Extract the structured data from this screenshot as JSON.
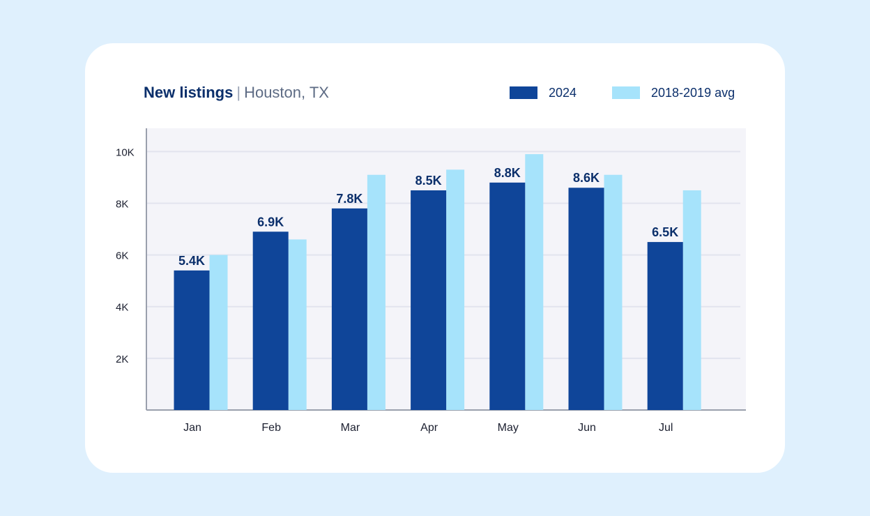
{
  "header": {
    "title": "New listings",
    "separator": "|",
    "subtitle": "Houston, TX"
  },
  "colors": {
    "series_2024": "#0f4599",
    "series_avg": "#a6e3fb",
    "text_dark": "#0b2f6b",
    "plot_bg": "#f4f4f9",
    "grid": "#e2e4ee"
  },
  "chart_data": {
    "type": "bar",
    "title": "New listings | Houston, TX",
    "categories": [
      "Jan",
      "Feb",
      "Mar",
      "Apr",
      "May",
      "Jun",
      "Jul"
    ],
    "series": [
      {
        "name": "2024",
        "values": [
          5.4,
          6.9,
          7.8,
          8.5,
          8.8,
          8.6,
          6.5
        ],
        "labels": [
          "5.4K",
          "6.9K",
          "7.8K",
          "8.5K",
          "8.8K",
          "8.6K",
          "6.5K"
        ],
        "color": "#0f4599"
      },
      {
        "name": "2018-2019 avg",
        "values": [
          6.0,
          6.6,
          9.1,
          9.3,
          9.9,
          9.1,
          8.5
        ],
        "color": "#a6e3fb"
      }
    ],
    "y_ticks": [
      {
        "label": "10K",
        "value": 10
      },
      {
        "label": "8K",
        "value": 8
      },
      {
        "label": "6K",
        "value": 6
      },
      {
        "label": "4K",
        "value": 4
      },
      {
        "label": "2K",
        "value": 2
      }
    ],
    "xlabel": "",
    "ylabel": "",
    "ylim": [
      0,
      10.9
    ],
    "grid": true,
    "legend_position": "top-right"
  }
}
